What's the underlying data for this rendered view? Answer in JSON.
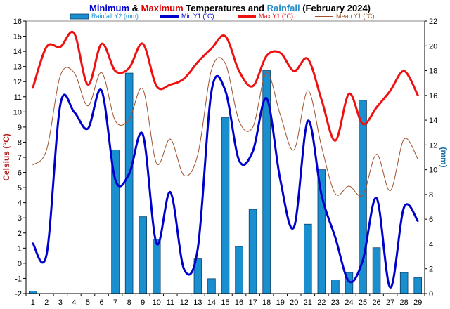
{
  "chart_data": {
    "type": "bar+line",
    "title_parts": [
      {
        "text": "Minimum",
        "color": "#0000cc"
      },
      {
        "text": " & ",
        "color": "#000000"
      },
      {
        "text": "Maximum",
        "color": "#dd0000"
      },
      {
        "text": " Temperatures and ",
        "color": "#000000"
      },
      {
        "text": "Rainfall",
        "color": "#2a8cc8"
      },
      {
        "text": " (February 2024)",
        "color": "#000000"
      }
    ],
    "y1label": "Celsius (°C)",
    "y2label": "(mm)",
    "y1lim": [
      -2,
      16
    ],
    "y2lim": [
      0,
      22
    ],
    "y1ticks": [
      -2,
      -1,
      0,
      1,
      2,
      3,
      4,
      5,
      6,
      7,
      8,
      9,
      10,
      11,
      12,
      13,
      14,
      15,
      16
    ],
    "y2ticks": [
      0,
      2,
      4,
      6,
      8,
      10,
      12,
      14,
      16,
      18,
      20,
      22
    ],
    "x": [
      1,
      2,
      3,
      4,
      5,
      6,
      7,
      8,
      9,
      10,
      11,
      12,
      13,
      14,
      15,
      16,
      17,
      18,
      19,
      20,
      21,
      22,
      23,
      24,
      25,
      26,
      27,
      28,
      29
    ],
    "legend_position": "top",
    "series": [
      {
        "name": "Rainfall Y2 (mm)",
        "kind": "bar",
        "axis": "y2",
        "color": "#1a8fd0",
        "values": [
          0.2,
          0,
          0,
          0,
          0,
          0,
          11.6,
          17.8,
          6.2,
          4.4,
          0,
          0,
          2.8,
          1.2,
          14.2,
          3.8,
          6.8,
          18,
          0,
          0,
          5.6,
          10,
          1.1,
          1.7,
          15.6,
          3.7,
          0,
          1.7,
          1.3
        ]
      },
      {
        "name": "Min Y1 (°C)",
        "kind": "line",
        "axis": "y1",
        "color": "#0000cc",
        "values": [
          1.3,
          0.6,
          10.5,
          10,
          8.9,
          11.4,
          5.5,
          5.9,
          8.5,
          1.3,
          4.7,
          -0.4,
          1,
          11.4,
          11.4,
          6.8,
          7.4,
          10.9,
          5.5,
          2.4,
          9.4,
          4.5,
          1.7,
          -1.2,
          0.2,
          4.3,
          -1.6,
          3.7,
          2.8
        ]
      },
      {
        "name": "Max Y1 (°C)",
        "kind": "line",
        "axis": "y1",
        "color": "#ee1111",
        "values": [
          11.6,
          14.3,
          14.3,
          15.2,
          11.8,
          14.5,
          12.7,
          12.9,
          14.5,
          11.7,
          11.8,
          12.2,
          13.3,
          14.2,
          15,
          12.7,
          11.7,
          13.7,
          13.9,
          12.7,
          13.5,
          10.8,
          8.1,
          11.2,
          9.2,
          10.3,
          11.4,
          12.7,
          11.1
        ]
      },
      {
        "name": "Mean Y1 (°C)",
        "kind": "line",
        "axis": "y1",
        "color": "#a0522d",
        "values": [
          6.5,
          7.5,
          12.4,
          12.6,
          10.4,
          12.6,
          9.4,
          9.5,
          11.5,
          6.6,
          8.2,
          5.8,
          7.2,
          12.8,
          13.2,
          9.4,
          9,
          12.6,
          9.8,
          7.5,
          11.4,
          7.7,
          4.6,
          5.1,
          4.5,
          7.2,
          4.8,
          8.2,
          6.9
        ]
      }
    ]
  }
}
